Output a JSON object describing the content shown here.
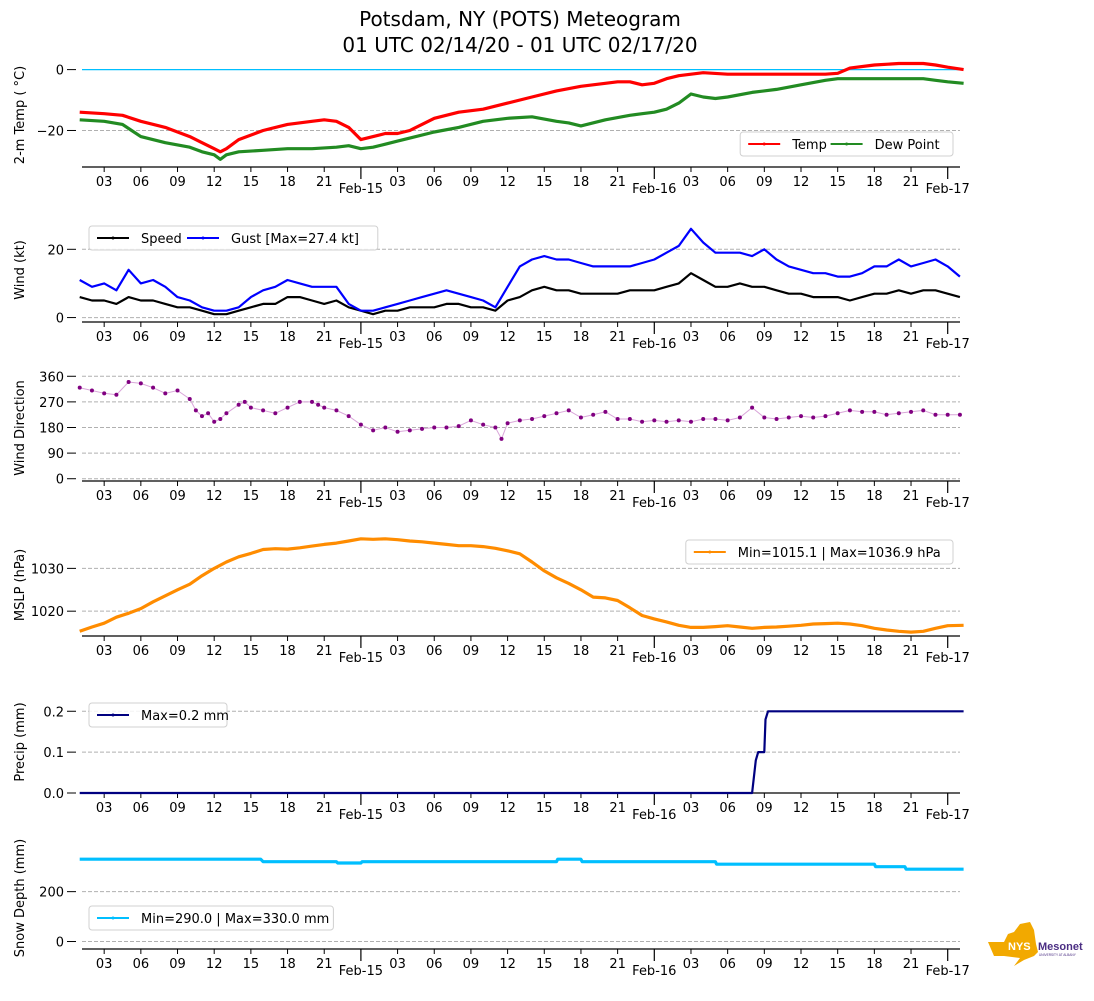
{
  "title": {
    "line1": "Potsdam, NY (POTS) Meteogram",
    "line2": "01 UTC 02/14/20 - 01 UTC 02/17/20"
  },
  "logo": {
    "text_main": "NYS",
    "text_brand": "Mesonet",
    "text_sub": "UNIVERSITY AT ALBANY",
    "colors": {
      "state": "#f2a900",
      "brand": "#4b2e83"
    }
  },
  "chart_data": [
    {
      "id": "temp",
      "type": "line",
      "title": "",
      "ylabel": "2-m Temp ( °C)",
      "xlabel": "",
      "x_unit": "hours since 00 UTC 02/14/20",
      "xlim": [
        0.9,
        73.3
      ],
      "ylim": [
        -32,
        2.5
      ],
      "yticks": [
        0,
        -20
      ],
      "ytick_labels": [
        "0",
        "−20"
      ],
      "grid_y": [
        -20
      ],
      "reference_line": {
        "y": 0,
        "color": "#00bfff"
      },
      "legend": {
        "placement": "lower-right",
        "ncol": 2
      },
      "series": [
        {
          "name": "Temp",
          "color": "#ff0000",
          "x": [
            1,
            3,
            4.5,
            6,
            8,
            10,
            11,
            12,
            12.5,
            13,
            14,
            16,
            18,
            20,
            21,
            22,
            23,
            24,
            25,
            26,
            27,
            28,
            29,
            30,
            32,
            34,
            36,
            38,
            40,
            42,
            44,
            45,
            46,
            47,
            48,
            49,
            50,
            51,
            52,
            54,
            56,
            58,
            60,
            62,
            63,
            64,
            66,
            68,
            70,
            71,
            72,
            73.3
          ],
          "y": [
            -14,
            -14.5,
            -15,
            -17,
            -19,
            -22,
            -24,
            -26,
            -27,
            -26,
            -23,
            -20,
            -18,
            -17,
            -16.5,
            -17,
            -19,
            -23,
            -22,
            -21,
            -21,
            -20,
            -18,
            -16,
            -14,
            -13,
            -11,
            -9,
            -7,
            -5.5,
            -4.5,
            -4,
            -4,
            -5,
            -4.5,
            -3,
            -2,
            -1.5,
            -1,
            -1.5,
            -1.5,
            -1.5,
            -1.5,
            -1.5,
            -1.2,
            0.5,
            1.5,
            2,
            2,
            1.5,
            0.8,
            0
          ]
        },
        {
          "name": "Dew Point",
          "color": "#228b22",
          "x": [
            1,
            3,
            4.5,
            6,
            8,
            10,
            11,
            12,
            12.5,
            13,
            14,
            16,
            18,
            20,
            22,
            23,
            24,
            25,
            26,
            27,
            28,
            30,
            32,
            34,
            36,
            38,
            40,
            41,
            42,
            44,
            46,
            47,
            48,
            49,
            50,
            51,
            52,
            53,
            54,
            56,
            58,
            60,
            62,
            63,
            64,
            66,
            68,
            70,
            71,
            72,
            73.3
          ],
          "y": [
            -16.5,
            -17,
            -18,
            -22,
            -24,
            -25.5,
            -27,
            -28,
            -29.5,
            -28,
            -27,
            -26.5,
            -26,
            -26,
            -25.5,
            -25,
            -26,
            -25.5,
            -24.5,
            -23.5,
            -22.5,
            -20.5,
            -19,
            -17,
            -16,
            -15.5,
            -17,
            -17.5,
            -18.5,
            -16.5,
            -15,
            -14.5,
            -14,
            -13,
            -11,
            -8,
            -9,
            -9.5,
            -9,
            -7.5,
            -6.5,
            -5,
            -3.5,
            -3,
            -3,
            -3,
            -3,
            -3,
            -3.5,
            -4,
            -4.5
          ]
        }
      ]
    },
    {
      "id": "wind",
      "type": "line",
      "ylabel": "Wind (kt)",
      "x_unit": "hours since 00 UTC 02/14/20",
      "xlim": [
        0.9,
        73.3
      ],
      "ylim": [
        -1.3,
        28
      ],
      "yticks": [
        0,
        20
      ],
      "ytick_labels": [
        "0",
        "20"
      ],
      "grid_y": [
        0,
        20
      ],
      "legend": {
        "placement": "upper-left",
        "ncol": 2
      },
      "series": [
        {
          "name": "Speed",
          "color": "#000000",
          "x": [
            1,
            2,
            3,
            4,
            5,
            6,
            7,
            8,
            9,
            10,
            11,
            12,
            13,
            14,
            15,
            16,
            17,
            18,
            19,
            20,
            21,
            22,
            23,
            24,
            25,
            26,
            27,
            28,
            29,
            30,
            31,
            32,
            33,
            34,
            35,
            36,
            37,
            38,
            39,
            40,
            41,
            42,
            43,
            44,
            45,
            46,
            47,
            48,
            49,
            50,
            51,
            52,
            53,
            54,
            55,
            56,
            57,
            58,
            59,
            60,
            61,
            62,
            63,
            64,
            65,
            66,
            67,
            68,
            69,
            70,
            71,
            72,
            73
          ],
          "y": [
            6,
            5,
            5,
            4,
            6,
            5,
            5,
            4,
            3,
            3,
            2,
            1,
            1,
            2,
            3,
            4,
            4,
            6,
            6,
            5,
            4,
            5,
            3,
            2,
            1,
            2,
            2,
            3,
            3,
            3,
            4,
            4,
            3,
            3,
            2,
            5,
            6,
            8,
            9,
            8,
            8,
            7,
            7,
            7,
            7,
            8,
            8,
            8,
            9,
            10,
            13,
            11,
            9,
            9,
            10,
            9,
            9,
            8,
            7,
            7,
            6,
            6,
            6,
            5,
            6,
            7,
            7,
            8,
            7,
            8,
            8,
            7,
            6
          ]
        },
        {
          "name": "Gust [Max=27.4 kt]",
          "color": "#0000ff",
          "max": 27.4,
          "x": [
            1,
            2,
            3,
            4,
            5,
            6,
            7,
            8,
            9,
            10,
            11,
            12,
            13,
            14,
            15,
            16,
            17,
            18,
            19,
            20,
            21,
            22,
            23,
            24,
            25,
            26,
            27,
            28,
            29,
            30,
            31,
            32,
            33,
            34,
            35,
            36,
            37,
            38,
            39,
            40,
            41,
            42,
            43,
            44,
            45,
            46,
            47,
            48,
            49,
            50,
            51,
            52,
            53,
            54,
            55,
            56,
            57,
            58,
            59,
            60,
            61,
            62,
            63,
            64,
            65,
            66,
            67,
            68,
            69,
            70,
            71,
            72,
            73
          ],
          "y": [
            11,
            9,
            10,
            8,
            14,
            10,
            11,
            9,
            6,
            5,
            3,
            2,
            2,
            3,
            6,
            8,
            9,
            11,
            10,
            9,
            9,
            9,
            4,
            2,
            2,
            3,
            4,
            5,
            6,
            7,
            8,
            7,
            6,
            5,
            3,
            9,
            15,
            17,
            18,
            17,
            17,
            16,
            15,
            15,
            15,
            15,
            16,
            17,
            19,
            21,
            26,
            22,
            19,
            19,
            19,
            18,
            20,
            17,
            15,
            14,
            13,
            13,
            12,
            12,
            13,
            15,
            15,
            17,
            15,
            16,
            17,
            15,
            12
          ]
        }
      ]
    },
    {
      "id": "wind_direction",
      "type": "scatter",
      "ylabel": "Wind Direction",
      "x_unit": "hours since 00 UTC 02/14/20",
      "xlim": [
        0.9,
        73.3
      ],
      "ylim": [
        -8,
        375
      ],
      "yticks": [
        0,
        90,
        180,
        270,
        360
      ],
      "ytick_labels": [
        "0",
        "90",
        "180",
        "270",
        "360"
      ],
      "grid_y": [
        0,
        90,
        180,
        270,
        360
      ],
      "series": [
        {
          "name": "Wind Direction",
          "color": "#800080",
          "x": [
            1,
            2,
            3,
            4,
            5,
            6,
            7,
            8,
            9,
            10,
            10.5,
            11,
            11.5,
            12,
            12.5,
            13,
            14,
            14.5,
            15,
            16,
            17,
            18,
            19,
            20,
            20.5,
            21,
            22,
            23,
            24,
            25,
            26,
            27,
            28,
            29,
            30,
            31,
            32,
            33,
            34,
            35,
            35.5,
            36,
            37,
            38,
            39,
            40,
            41,
            42,
            43,
            44,
            45,
            46,
            47,
            48,
            49,
            50,
            51,
            52,
            53,
            54,
            55,
            56,
            57,
            58,
            59,
            60,
            61,
            62,
            63,
            64,
            65,
            66,
            67,
            68,
            69,
            70,
            71,
            72,
            73
          ],
          "y": [
            320,
            310,
            300,
            295,
            340,
            335,
            320,
            300,
            310,
            280,
            240,
            220,
            230,
            200,
            210,
            230,
            260,
            270,
            250,
            240,
            230,
            250,
            270,
            270,
            260,
            250,
            240,
            220,
            190,
            170,
            180,
            165,
            170,
            175,
            180,
            180,
            185,
            205,
            190,
            180,
            140,
            195,
            205,
            210,
            220,
            230,
            240,
            215,
            225,
            235,
            210,
            210,
            200,
            205,
            200,
            205,
            200,
            210,
            210,
            205,
            215,
            250,
            215,
            210,
            215,
            220,
            215,
            220,
            230,
            240,
            235,
            235,
            225,
            230,
            235,
            240,
            225,
            225,
            225
          ],
          "connect_line": true
        }
      ]
    },
    {
      "id": "mslp",
      "type": "line",
      "ylabel": "MSLP (hPa)",
      "x_unit": "hours since 00 UTC 02/14/20",
      "xlim": [
        0.9,
        73.3
      ],
      "ylim": [
        1014.2,
        1038.5
      ],
      "yticks": [
        1020,
        1030
      ],
      "ytick_labels": [
        "1020",
        "1030"
      ],
      "grid_y": [
        1020,
        1030
      ],
      "legend": {
        "placement": "upper-right",
        "ncol": 1
      },
      "series": [
        {
          "name": "Min=1015.1 | Max=1036.9 hPa",
          "color": "#ff8c00",
          "min": 1015.1,
          "max": 1036.9,
          "x": [
            1,
            2,
            3,
            4,
            5,
            6,
            7,
            8,
            9,
            10,
            11,
            12,
            13,
            14,
            15,
            16,
            17,
            18,
            19,
            20,
            21,
            22,
            23,
            24,
            25,
            26,
            27,
            28,
            29,
            30,
            31,
            32,
            33,
            34,
            35,
            36,
            37,
            38,
            39,
            40,
            41,
            42,
            43,
            44,
            45,
            46,
            47,
            48,
            49,
            50,
            51,
            52,
            53,
            54,
            55,
            56,
            57,
            58,
            59,
            60,
            61,
            62,
            63,
            64,
            65,
            66,
            67,
            68,
            69,
            70,
            71,
            72,
            73.3
          ],
          "y": [
            1015.3,
            1016.3,
            1017.2,
            1018.6,
            1019.5,
            1020.6,
            1022.2,
            1023.6,
            1025.0,
            1026.3,
            1028.3,
            1030.0,
            1031.5,
            1032.7,
            1033.5,
            1034.4,
            1034.6,
            1034.5,
            1034.8,
            1035.2,
            1035.6,
            1035.9,
            1036.4,
            1036.9,
            1036.8,
            1036.9,
            1036.7,
            1036.4,
            1036.2,
            1035.9,
            1035.6,
            1035.3,
            1035.3,
            1035.1,
            1034.7,
            1034.1,
            1033.4,
            1031.5,
            1029.4,
            1027.8,
            1026.5,
            1025.0,
            1023.3,
            1023.1,
            1022.5,
            1020.8,
            1019.0,
            1018.2,
            1017.5,
            1016.7,
            1016.2,
            1016.2,
            1016.4,
            1016.6,
            1016.3,
            1016.0,
            1016.2,
            1016.3,
            1016.5,
            1016.7,
            1017.0,
            1017.1,
            1017.2,
            1017.0,
            1016.6,
            1016.0,
            1015.6,
            1015.3,
            1015.1,
            1015.3,
            1016.0,
            1016.6,
            1016.7
          ]
        }
      ]
    },
    {
      "id": "precip",
      "type": "line",
      "ylabel": "Precip (mm)",
      "x_unit": "hours since 00 UTC 02/14/20",
      "xlim": [
        0.9,
        73.3
      ],
      "ylim": [
        0,
        0.23
      ],
      "yticks": [
        0.0,
        0.1,
        0.2
      ],
      "ytick_labels": [
        "0.0",
        "0.1",
        "0.2"
      ],
      "grid_y": [
        0.1,
        0.2
      ],
      "legend": {
        "placement": "upper-left",
        "ncol": 1
      },
      "series": [
        {
          "name": "Max=0.2 mm",
          "color": "#000080",
          "max": 0.2,
          "x": [
            1,
            56.0,
            56.3,
            56.5,
            57.0,
            57.1,
            57.3,
            57.4,
            73.3
          ],
          "y": [
            0,
            0,
            0.08,
            0.1,
            0.1,
            0.18,
            0.2,
            0.2,
            0.2
          ]
        }
      ]
    },
    {
      "id": "snow_depth",
      "type": "line",
      "ylabel": "Snow Depth (mm)",
      "x_unit": "hours since 00 UTC 02/14/20",
      "xlim": [
        0.9,
        73.3
      ],
      "ylim": [
        -30,
        375
      ],
      "yticks": [
        0,
        200
      ],
      "ytick_labels": [
        "0",
        "200"
      ],
      "grid_y": [
        0,
        200
      ],
      "legend": {
        "placement": "lower-left",
        "ncol": 1
      },
      "series": [
        {
          "name": "Min=290.0 | Max=330.0 mm",
          "color": "#00bfff",
          "min": 290.0,
          "max": 330.0,
          "x": [
            1,
            15.8,
            16,
            22,
            22.1,
            24,
            24.1,
            40,
            40.1,
            42,
            42.1,
            53,
            53.1,
            66,
            66.1,
            68.5,
            68.6,
            73.3
          ],
          "y": [
            330,
            330,
            320,
            320,
            315,
            315,
            320,
            320,
            330,
            330,
            320,
            320,
            310,
            310,
            300,
            300,
            290,
            290
          ]
        }
      ]
    }
  ],
  "x_axis": {
    "hour_ticks": [
      "03",
      "06",
      "09",
      "12",
      "15",
      "18",
      "21"
    ],
    "day_labels": [
      "Feb-15",
      "Feb-16",
      "Feb-17"
    ],
    "day_hours": [
      24,
      48,
      72
    ]
  }
}
